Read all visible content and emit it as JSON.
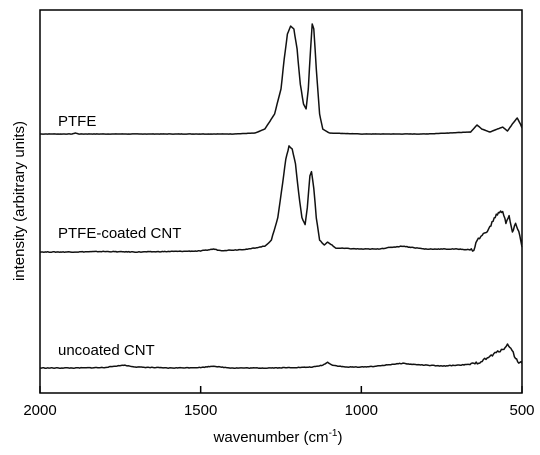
{
  "chart_data": {
    "type": "line",
    "xlabel": "wavenumber (cm",
    "xlabel_sup": "-1",
    "xlabel_tail": ")",
    "ylabel": "intensity (arbitrary units)",
    "xlim": [
      2000,
      500
    ],
    "x_reversed": true,
    "x_ticks": [
      2000,
      1500,
      1000,
      500
    ],
    "x_tick_labels": [
      "2000",
      "1500",
      "1000",
      "500"
    ],
    "y_ticks_shown": false,
    "grid": false,
    "series": [
      {
        "name": "PTFE",
        "label": "PTFE",
        "baseline": 0.0,
        "points": [
          [
            2000,
            0.0
          ],
          [
            1900,
            0.0
          ],
          [
            1890,
            0.01
          ],
          [
            1880,
            0.0
          ],
          [
            1800,
            0.0
          ],
          [
            1500,
            0.0
          ],
          [
            1400,
            0.0
          ],
          [
            1330,
            0.01
          ],
          [
            1300,
            0.05
          ],
          [
            1270,
            0.2
          ],
          [
            1250,
            0.45
          ],
          [
            1240,
            0.75
          ],
          [
            1230,
            1.0
          ],
          [
            1220,
            1.08
          ],
          [
            1210,
            1.05
          ],
          [
            1200,
            0.85
          ],
          [
            1190,
            0.5
          ],
          [
            1180,
            0.3
          ],
          [
            1172,
            0.25
          ],
          [
            1165,
            0.45
          ],
          [
            1158,
            0.85
          ],
          [
            1153,
            1.1
          ],
          [
            1148,
            1.05
          ],
          [
            1140,
            0.65
          ],
          [
            1130,
            0.2
          ],
          [
            1120,
            0.05
          ],
          [
            1100,
            0.01
          ],
          [
            1000,
            0.0
          ],
          [
            800,
            0.0
          ],
          [
            660,
            0.02
          ],
          [
            640,
            0.09
          ],
          [
            625,
            0.05
          ],
          [
            600,
            0.02
          ],
          [
            560,
            0.07
          ],
          [
            545,
            0.03
          ],
          [
            530,
            0.1
          ],
          [
            515,
            0.16
          ],
          [
            505,
            0.1
          ],
          [
            500,
            0.06
          ]
        ]
      },
      {
        "name": "PTFE-coated CNT",
        "label": "PTFE-coated CNT",
        "baseline": 0.0,
        "points": [
          [
            2000,
            0.0
          ],
          [
            1900,
            0.0
          ],
          [
            1800,
            0.005
          ],
          [
            1700,
            0.0
          ],
          [
            1600,
            0.005
          ],
          [
            1500,
            0.01
          ],
          [
            1460,
            0.03
          ],
          [
            1440,
            0.015
          ],
          [
            1400,
            0.02
          ],
          [
            1350,
            0.03
          ],
          [
            1300,
            0.06
          ],
          [
            1280,
            0.12
          ],
          [
            1260,
            0.35
          ],
          [
            1245,
            0.7
          ],
          [
            1235,
            0.95
          ],
          [
            1225,
            1.08
          ],
          [
            1215,
            1.05
          ],
          [
            1205,
            0.9
          ],
          [
            1195,
            0.6
          ],
          [
            1185,
            0.35
          ],
          [
            1175,
            0.28
          ],
          [
            1168,
            0.45
          ],
          [
            1160,
            0.78
          ],
          [
            1155,
            0.82
          ],
          [
            1148,
            0.65
          ],
          [
            1140,
            0.35
          ],
          [
            1130,
            0.12
          ],
          [
            1115,
            0.07
          ],
          [
            1105,
            0.1
          ],
          [
            1095,
            0.08
          ],
          [
            1080,
            0.04
          ],
          [
            1000,
            0.03
          ],
          [
            950,
            0.03
          ],
          [
            900,
            0.05
          ],
          [
            870,
            0.06
          ],
          [
            850,
            0.05
          ],
          [
            800,
            0.03
          ],
          [
            700,
            0.03
          ],
          [
            650,
            0.02
          ],
          [
            640,
            0.12
          ],
          [
            620,
            0.18
          ],
          [
            600,
            0.25
          ],
          [
            590,
            0.32
          ],
          [
            580,
            0.38
          ],
          [
            570,
            0.4
          ],
          [
            560,
            0.42
          ],
          [
            550,
            0.3
          ],
          [
            540,
            0.36
          ],
          [
            530,
            0.2
          ],
          [
            520,
            0.28
          ],
          [
            510,
            0.22
          ],
          [
            500,
            0.05
          ]
        ]
      },
      {
        "name": "uncoated CNT",
        "label": "uncoated CNT",
        "baseline": 0.0,
        "points": [
          [
            2000,
            0.0
          ],
          [
            1900,
            0.0
          ],
          [
            1800,
            0.005
          ],
          [
            1740,
            0.03
          ],
          [
            1700,
            0.01
          ],
          [
            1600,
            0.0
          ],
          [
            1500,
            0.005
          ],
          [
            1460,
            0.02
          ],
          [
            1440,
            0.01
          ],
          [
            1400,
            0.0
          ],
          [
            1300,
            0.0
          ],
          [
            1200,
            0.005
          ],
          [
            1150,
            0.01
          ],
          [
            1120,
            0.03
          ],
          [
            1105,
            0.06
          ],
          [
            1090,
            0.03
          ],
          [
            1050,
            0.01
          ],
          [
            1000,
            0.01
          ],
          [
            950,
            0.02
          ],
          [
            900,
            0.04
          ],
          [
            870,
            0.05
          ],
          [
            850,
            0.04
          ],
          [
            800,
            0.03
          ],
          [
            750,
            0.02
          ],
          [
            700,
            0.03
          ],
          [
            650,
            0.04
          ],
          [
            620,
            0.08
          ],
          [
            600,
            0.12
          ],
          [
            580,
            0.16
          ],
          [
            560,
            0.2
          ],
          [
            545,
            0.24
          ],
          [
            535,
            0.22
          ],
          [
            520,
            0.1
          ],
          [
            510,
            0.06
          ],
          [
            500,
            0.05
          ]
        ]
      }
    ]
  }
}
